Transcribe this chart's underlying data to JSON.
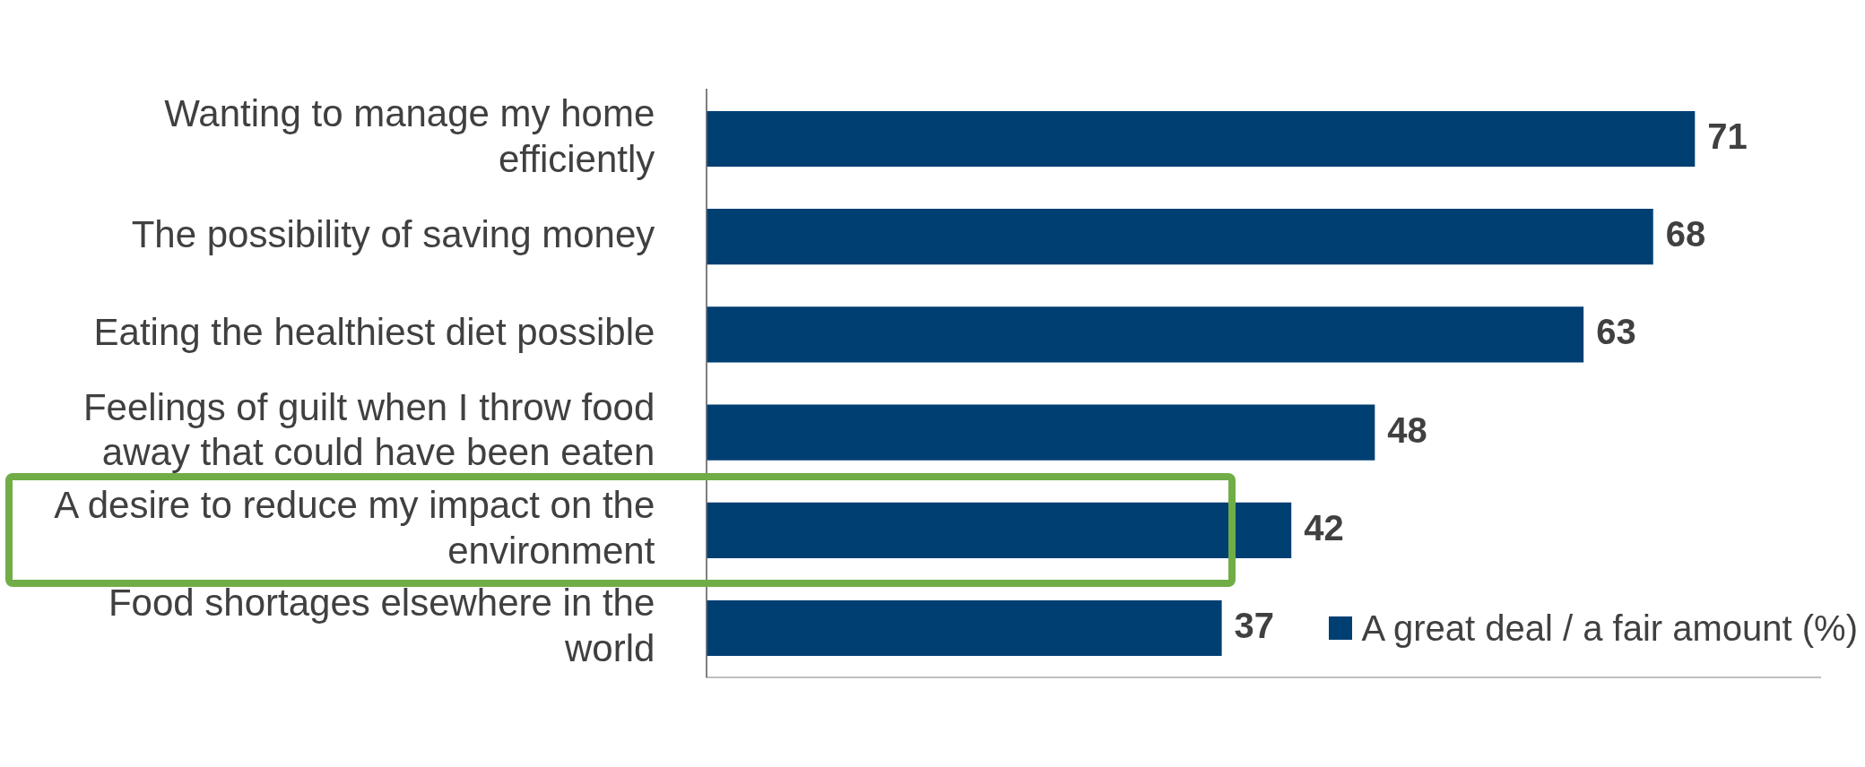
{
  "chart_data": {
    "type": "bar",
    "orientation": "horizontal",
    "categories": [
      "Wanting to manage my home efficiently",
      "The possibility of saving money",
      "Eating the healthiest diet possible",
      "Feelings of guilt when I throw food away that could have been eaten",
      "A desire to reduce my impact on the environment",
      "Food shortages elsewhere in the world"
    ],
    "series": [
      {
        "name": "A great deal / a fair amount (%)",
        "color": "#003f72",
        "values": [
          71,
          68,
          63,
          48,
          42,
          37
        ]
      }
    ],
    "data_labels": true,
    "grid": false,
    "legend": "bottom right",
    "tick_labels": "y"
  }
}
